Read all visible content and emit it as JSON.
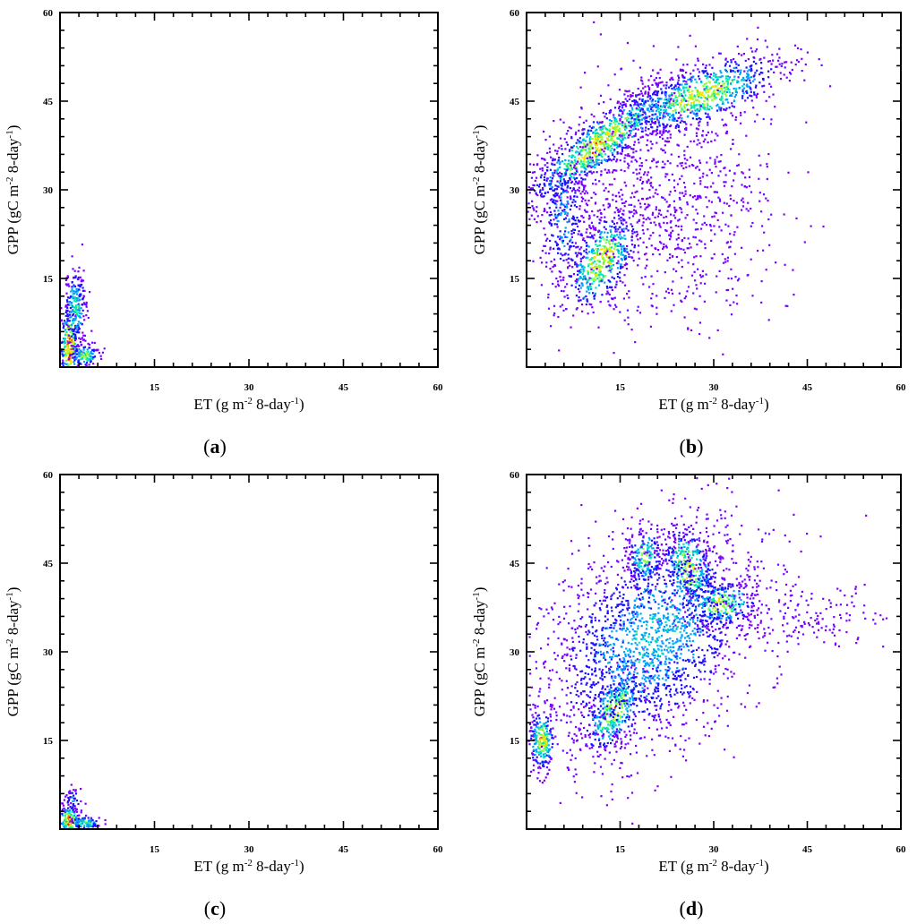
{
  "figure": {
    "panels": [
      {
        "id": "a",
        "label": "a"
      },
      {
        "id": "b",
        "label": "b"
      },
      {
        "id": "c",
        "label": "c"
      },
      {
        "id": "d",
        "label": "d"
      }
    ]
  },
  "chart_data": [
    {
      "panel": "a",
      "type": "scatter",
      "style": "density-heatmap scatter",
      "xlabel": "ET (g m-2 8-day-1)",
      "ylabel": "GPP (gC m-2 8-day-1)",
      "xlabel_parts": {
        "base": "ET (g m",
        "sup1": "-2",
        "mid": " 8-day",
        "sup2": "-1",
        "end": ")"
      },
      "ylabel_parts": {
        "base": "GPP (gC m",
        "sup1": "-2",
        "mid": " 8-day",
        "sup2": "-1",
        "end": ")"
      },
      "xlim": [
        0,
        60
      ],
      "ylim": [
        0,
        60
      ],
      "xticks": [
        "15",
        "30",
        "45",
        "60"
      ],
      "yticks": [
        "15",
        "30",
        "45",
        "60"
      ],
      "colormap": [
        "#7a00ff",
        "#1e10ff",
        "#00a0ff",
        "#00e6b4",
        "#8cff3c",
        "#ffe000",
        "#ff3000"
      ],
      "clusters": [
        {
          "x": 1.5,
          "y": 3.5,
          "sx": 0.7,
          "sy": 3.5,
          "n": 260,
          "density": 0.95,
          "tilt": 0
        },
        {
          "x": 2.5,
          "y": 10.0,
          "sx": 0.9,
          "sy": 3.5,
          "n": 200,
          "density": 0.5,
          "tilt": 0
        },
        {
          "x": 4.0,
          "y": 2.0,
          "sx": 1.2,
          "sy": 1.0,
          "n": 120,
          "density": 0.6,
          "tilt": 0
        }
      ]
    },
    {
      "panel": "b",
      "type": "scatter",
      "style": "density-heatmap scatter",
      "xlabel": "ET (g m-2 8-day-1)",
      "ylabel": "GPP (gC m-2 8-day-1)",
      "xlabel_parts": {
        "base": "ET (g m",
        "sup1": "-2",
        "mid": " 8-day",
        "sup2": "-1",
        "end": ")"
      },
      "ylabel_parts": {
        "base": "GPP (gC m",
        "sup1": "-2",
        "mid": " 8-day",
        "sup2": "-1",
        "end": ")"
      },
      "xlim": [
        0,
        60
      ],
      "ylim": [
        0,
        60
      ],
      "xticks": [
        "15",
        "30",
        "45",
        "60"
      ],
      "yticks": [
        "15",
        "30",
        "45",
        "60"
      ],
      "colormap": [
        "#7a00ff",
        "#1e10ff",
        "#00a0ff",
        "#00e6b4",
        "#8cff3c",
        "#ffe000",
        "#ff3000"
      ],
      "clusters": [
        {
          "x": 12.0,
          "y": 38.0,
          "sx": 6.0,
          "sy": 2.5,
          "n": 900,
          "density": 0.75,
          "tilt": 0.75
        },
        {
          "x": 28.0,
          "y": 46.0,
          "sx": 6.5,
          "sy": 2.5,
          "n": 800,
          "density": 0.7,
          "tilt": 0.35
        },
        {
          "x": 12.0,
          "y": 18.0,
          "sx": 3.0,
          "sy": 3.5,
          "n": 500,
          "density": 0.75,
          "tilt": 0.8
        },
        {
          "x": 22.0,
          "y": 28.0,
          "sx": 9.0,
          "sy": 10.0,
          "n": 900,
          "density": 0.1,
          "tilt": 0
        },
        {
          "x": 6.0,
          "y": 25.0,
          "sx": 2.0,
          "sy": 6.0,
          "n": 300,
          "density": 0.35,
          "tilt": 0
        }
      ]
    },
    {
      "panel": "c",
      "type": "scatter",
      "style": "density-heatmap scatter",
      "xlabel": "ET (g m-2 8-day-1)",
      "ylabel": "GPP (gC m-2 8-day-1)",
      "xlabel_parts": {
        "base": "ET (g m",
        "sup1": "-2",
        "mid": " 8-day",
        "sup2": "-1",
        "end": ")"
      },
      "ylabel_parts": {
        "base": "GPP (gC m",
        "sup1": "-2",
        "mid": " 8-day",
        "sup2": "-1",
        "end": ")"
      },
      "xlim": [
        0,
        60
      ],
      "ylim": [
        0,
        60
      ],
      "xticks": [
        "15",
        "30",
        "45",
        "60"
      ],
      "yticks": [
        "15",
        "30",
        "45",
        "60"
      ],
      "colormap": [
        "#7a00ff",
        "#1e10ff",
        "#00a0ff",
        "#00e6b4",
        "#8cff3c",
        "#ffe000",
        "#ff3000"
      ],
      "clusters": [
        {
          "x": 1.5,
          "y": 1.5,
          "sx": 0.8,
          "sy": 1.2,
          "n": 160,
          "density": 0.95,
          "tilt": 0
        },
        {
          "x": 4.0,
          "y": 1.0,
          "sx": 1.3,
          "sy": 0.6,
          "n": 90,
          "density": 0.55,
          "tilt": 0
        },
        {
          "x": 2.0,
          "y": 5.0,
          "sx": 0.8,
          "sy": 1.2,
          "n": 40,
          "density": 0.3,
          "tilt": 0
        }
      ]
    },
    {
      "panel": "d",
      "type": "scatter",
      "style": "density-heatmap scatter",
      "xlabel": "ET (g m-2 8-day-1)",
      "ylabel": "GPP (gC m-2 8-day-1)",
      "xlabel_parts": {
        "base": "ET (g m",
        "sup1": "-2",
        "mid": " 8-day",
        "sup2": "-1",
        "end": ")"
      },
      "ylabel_parts": {
        "base": "GPP (gC m",
        "sup1": "-2",
        "mid": " 8-day",
        "sup2": "-1",
        "end": ")"
      },
      "xlim": [
        0,
        60
      ],
      "ylim": [
        0,
        60
      ],
      "xticks": [
        "15",
        "30",
        "45",
        "60"
      ],
      "yticks": [
        "15",
        "30",
        "45",
        "60"
      ],
      "colormap": [
        "#7a00ff",
        "#1e10ff",
        "#00a0ff",
        "#00e6b4",
        "#8cff3c",
        "#ffe000",
        "#ff3000"
      ],
      "clusters": [
        {
          "x": 2.5,
          "y": 15.0,
          "sx": 1.0,
          "sy": 2.5,
          "n": 260,
          "density": 0.75,
          "tilt": 0
        },
        {
          "x": 14.0,
          "y": 20.0,
          "sx": 2.5,
          "sy": 3.0,
          "n": 400,
          "density": 0.7,
          "tilt": 0.8
        },
        {
          "x": 19.0,
          "y": 46.0,
          "sx": 1.5,
          "sy": 2.5,
          "n": 200,
          "density": 0.6,
          "tilt": 0
        },
        {
          "x": 26.0,
          "y": 44.0,
          "sx": 2.0,
          "sy": 3.5,
          "n": 300,
          "density": 0.75,
          "tilt": -0.5
        },
        {
          "x": 31.0,
          "y": 38.0,
          "sx": 3.0,
          "sy": 2.0,
          "n": 250,
          "density": 0.7,
          "tilt": 0
        },
        {
          "x": 20.0,
          "y": 32.0,
          "sx": 9.0,
          "sy": 9.0,
          "n": 2000,
          "density": 0.4,
          "tilt": 0.4
        },
        {
          "x": 45.0,
          "y": 36.0,
          "sx": 7.0,
          "sy": 3.0,
          "n": 150,
          "density": 0.05,
          "tilt": 0
        }
      ]
    }
  ]
}
